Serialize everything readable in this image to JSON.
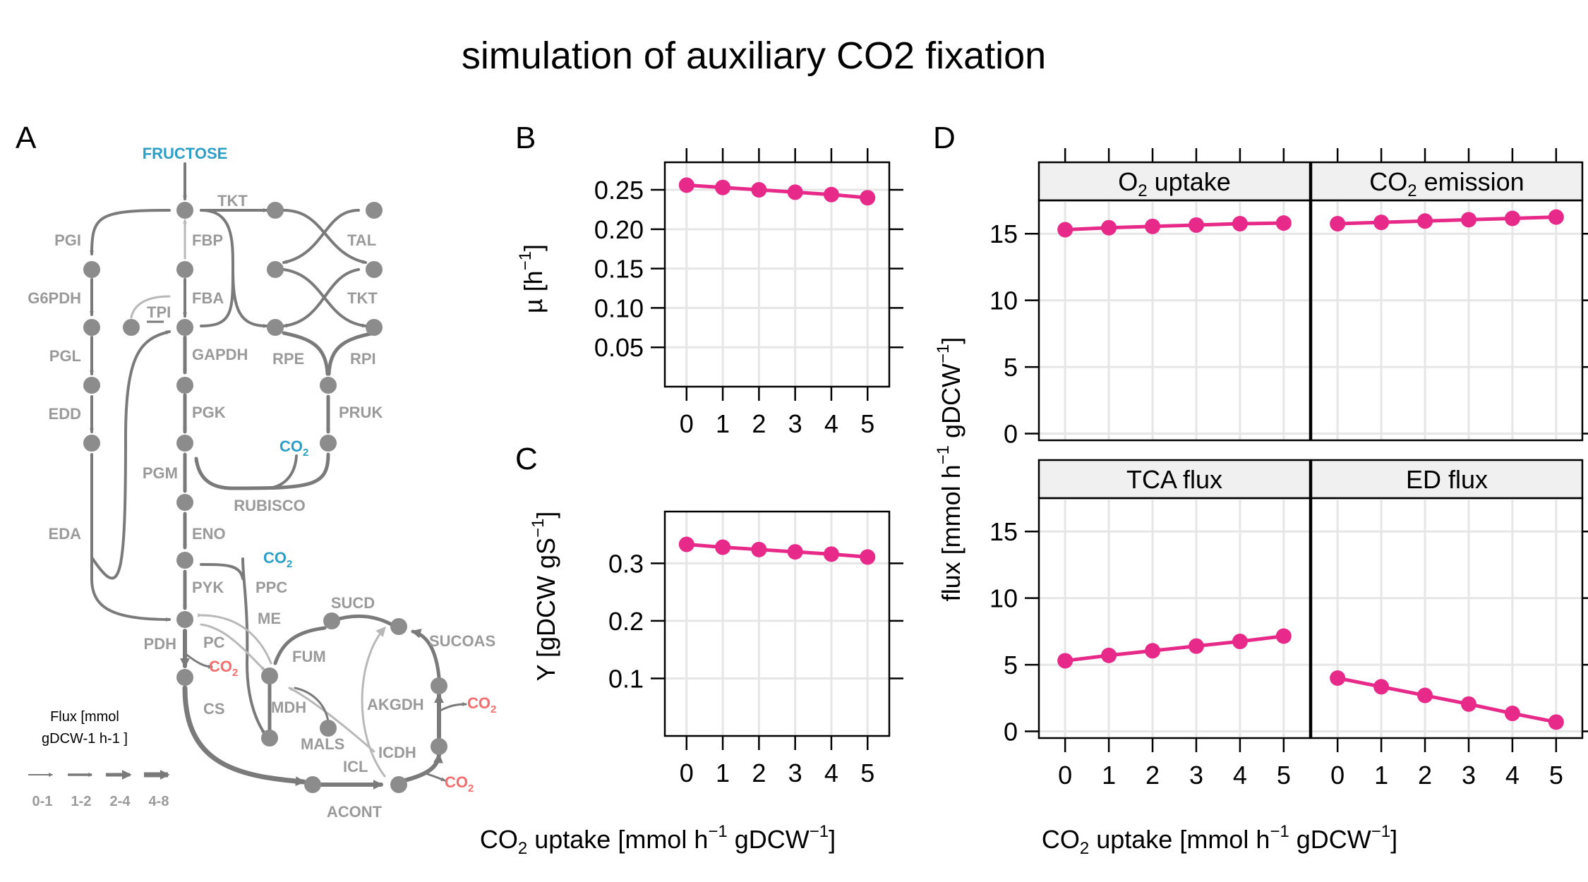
{
  "title": "simulation of auxiliary CO2 fixation",
  "panels": {
    "a": "A",
    "b": "B",
    "c": "C",
    "d": "D"
  },
  "diagram": {
    "substrate": "FRUCTOSE",
    "co2": "CO",
    "co2_sub": "2",
    "enzymes": {
      "pgi": "PGI",
      "g6pdh": "G6PDH",
      "pgl": "PGL",
      "edd": "EDD",
      "eda": "EDA",
      "tkt1": "TKT",
      "fbp": "FBP",
      "fba": "FBA",
      "tpi": "TPI",
      "gapdh": "GAPDH",
      "pgk": "PGK",
      "pgm": "PGM",
      "eno": "ENO",
      "pyk": "PYK",
      "pdh": "PDH",
      "pc": "PC",
      "ppc": "PPC",
      "me": "ME",
      "cs": "CS",
      "mdh": "MDH",
      "fum": "FUM",
      "sucd": "SUCD",
      "sucoas": "SUCOAS",
      "akgdh": "AKGDH",
      "icdh": "ICDH",
      "icl": "ICL",
      "mals": "MALS",
      "acont": "ACONT",
      "tal": "TAL",
      "tkt2": "TKT",
      "rpe": "RPE",
      "rpi": "RPI",
      "pruk": "PRUK",
      "rubisco": "RUBISCO"
    },
    "legend": {
      "title_line1": "Flux [mmol",
      "title_line2": "gDCW-1 h-1 ]",
      "bins": [
        "0-1",
        "1-2",
        "2-4",
        "4-8"
      ]
    },
    "colors": {
      "node": "#8c8c8c",
      "edge": "#7a7a7a",
      "edge_light": "#b8b8b8",
      "co2_in": "#2b9fc7",
      "co2_out": "#f46d6d"
    }
  },
  "axes": {
    "x_label": "CO",
    "x_label_sub": "2",
    "x_label_rest": " uptake [mmol h",
    "x_label_sup1": "−1",
    "x_label_unit": " gDCW",
    "x_label_sup2": "−1",
    "x_label_close": "]",
    "b_ylabel": "µ [h",
    "b_ylabel_sup": "−1",
    "b_ylabel_close": "]",
    "c_ylabel": "Y [gDCW gS",
    "c_ylabel_sup": "−1",
    "c_ylabel_close": "]",
    "d_ylabel": "flux [mmol h",
    "d_ylabel_sup1": "−1",
    "d_ylabel_mid": " gDCW",
    "d_ylabel_sup2": "−1",
    "d_ylabel_close": "]"
  },
  "chart_data": [
    {
      "panel": "B",
      "type": "line",
      "x": [
        0,
        1,
        2,
        3,
        4,
        5
      ],
      "y": [
        0.256,
        0.253,
        0.25,
        0.247,
        0.244,
        0.24
      ],
      "xlim": [
        -0.6,
        5.6
      ],
      "ylim": [
        0.0,
        0.285
      ],
      "xticks": [
        "0",
        "1",
        "2",
        "3",
        "4",
        "5"
      ],
      "yticks": [
        "0.05",
        "0.10",
        "0.15",
        "0.20",
        "0.25"
      ],
      "yticks_num": [
        0.05,
        0.1,
        0.15,
        0.2,
        0.25
      ],
      "grid": true,
      "color": "#e7298a"
    },
    {
      "panel": "C",
      "type": "line",
      "x": [
        0,
        1,
        2,
        3,
        4,
        5
      ],
      "y": [
        0.333,
        0.328,
        0.324,
        0.32,
        0.316,
        0.311
      ],
      "xlim": [
        -0.6,
        5.6
      ],
      "ylim": [
        0.0,
        0.39
      ],
      "xticks": [
        "0",
        "1",
        "2",
        "3",
        "4",
        "5"
      ],
      "yticks": [
        "0.1",
        "0.2",
        "0.3"
      ],
      "yticks_num": [
        0.1,
        0.2,
        0.3
      ],
      "grid": true,
      "color": "#e7298a"
    },
    {
      "panel": "D",
      "type": "line",
      "x": [
        0,
        1,
        2,
        3,
        4,
        5
      ],
      "xlim": [
        -0.6,
        5.6
      ],
      "ylim": [
        -0.5,
        17.5
      ],
      "xticks": [
        "0",
        "1",
        "2",
        "3",
        "4",
        "5"
      ],
      "yticks": [
        "0",
        "5",
        "10",
        "15"
      ],
      "yticks_num": [
        0,
        5,
        10,
        15
      ],
      "grid": true,
      "color": "#e7298a",
      "facets": [
        {
          "label": "O",
          "label_sub": "2",
          "label_rest": " uptake",
          "y": [
            15.3,
            15.45,
            15.55,
            15.65,
            15.75,
            15.8
          ]
        },
        {
          "label": "CO",
          "label_sub": "2",
          "label_rest": " emission",
          "y": [
            15.75,
            15.85,
            15.95,
            16.05,
            16.15,
            16.25
          ]
        },
        {
          "label": "TCA flux",
          "label_sub": "",
          "label_rest": "",
          "y": [
            5.3,
            5.7,
            6.05,
            6.4,
            6.75,
            7.15
          ]
        },
        {
          "label": "ED flux",
          "label_sub": "",
          "label_rest": "",
          "y": [
            4.0,
            3.35,
            2.7,
            2.05,
            1.35,
            0.7
          ]
        }
      ]
    }
  ]
}
